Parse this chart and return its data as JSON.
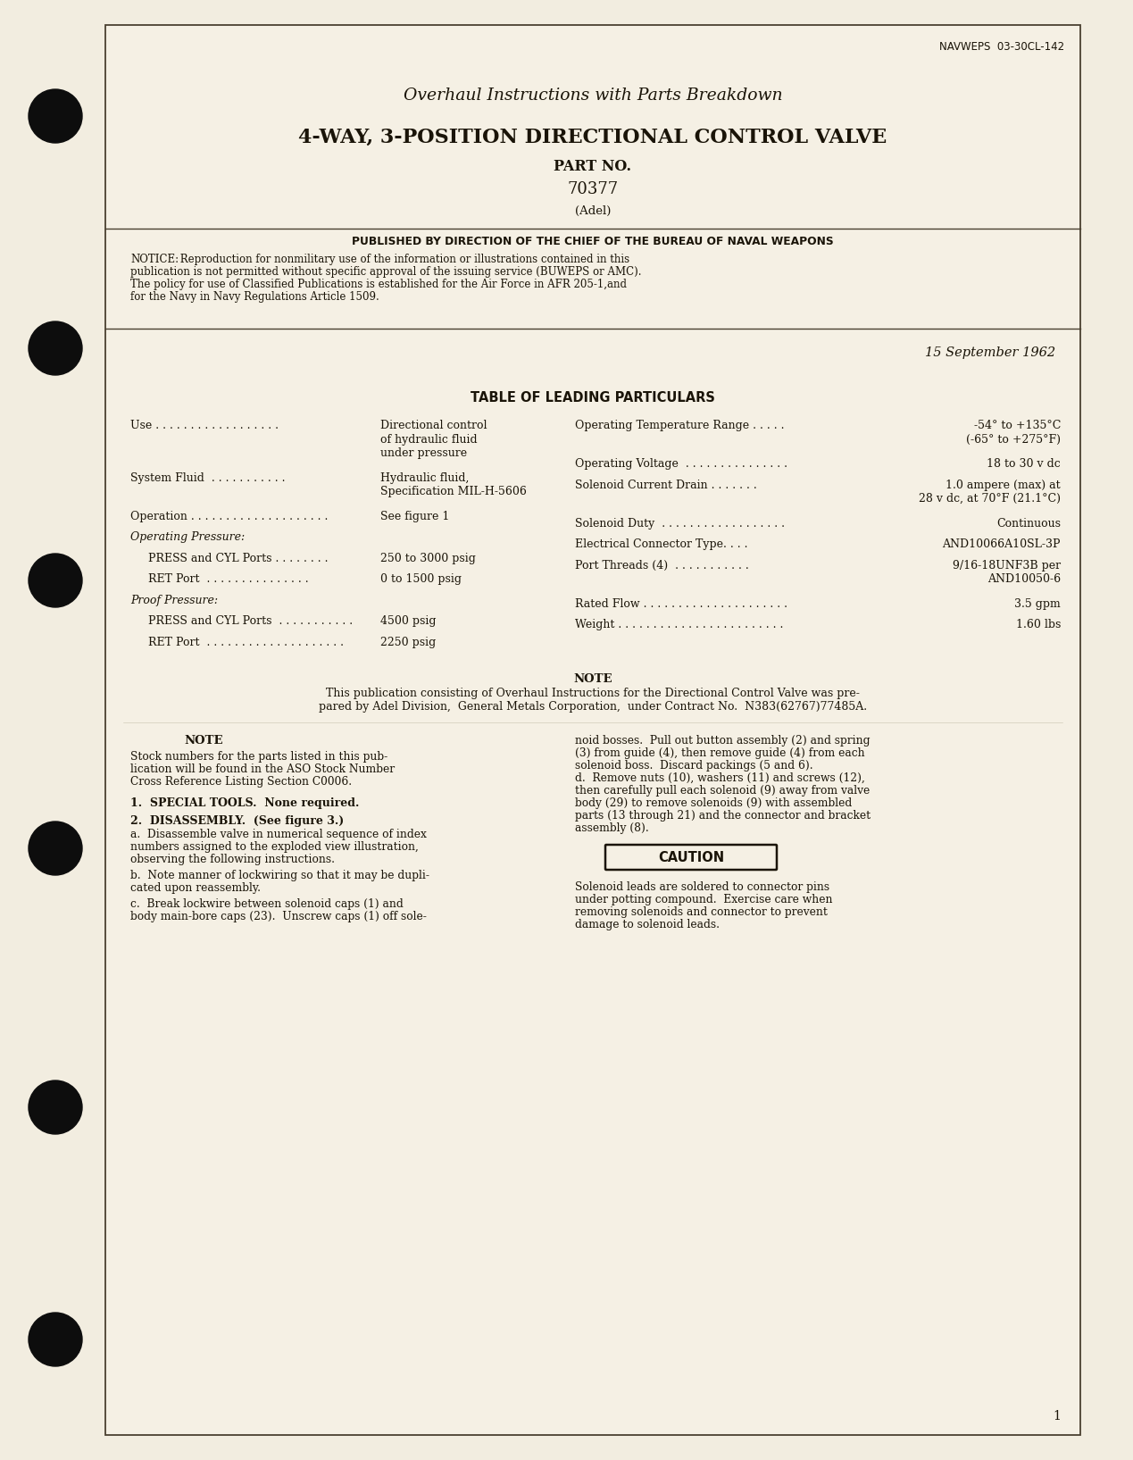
{
  "bg_color": "#f2ede0",
  "inner_bg": "#f5f0e4",
  "text_color": "#1a1408",
  "navweps": "NAVWEPS  03-30CL-142",
  "title1": "Overhaul Instructions with Parts Breakdown",
  "title2": "4-WAY, 3-POSITION DIRECTIONAL CONTROL VALVE",
  "title3": "PART NO.",
  "title4": "70377",
  "title5": "(Adel)",
  "published": "PUBLISHED BY DIRECTION OF THE CHIEF OF THE BUREAU OF NAVAL WEAPONS",
  "notice_label": "NOTICE:",
  "notice_body": "  Reproduction for nonmilitary use of the information or illustrations contained in this\npublication is not permitted without specific approval of the issuing service (BUWEPS or AMC).\nThe policy for use of Classified Publications is established for the Air Force in AFR 205-1,and\nfor the Navy in Navy Regulations Article 1509.",
  "date": "15 September 1962",
  "table_heading": "TABLE OF LEADING PARTICULARS",
  "note_heading": "NOTE",
  "note_text": "This publication consisting of Overhaul Instructions for the Directional Control Valve was pre-\npared by Adel Division,  General Metals Corporation,  under Contract No.  N383(62767)77485A.",
  "note2_heading": "NOTE",
  "note2_text": "Stock numbers for the parts listed in this pub-\nlication will be found in the ASO Stock Number\nCross Reference Listing Section C0006.",
  "section1": "1.  SPECIAL TOOLS.  None required.",
  "section2_head": "2.  DISASSEMBLY.  (See figure 3.)",
  "section2a": "a.  Disassemble valve in numerical sequence of index\nnumbers assigned to the exploded view illustration,\nobserving the following instructions.",
  "section2b": "b.  Note manner of lockwiring so that it may be dupli-\ncated upon reassembly.",
  "section2c": "c.  Break lockwire between solenoid caps (1) and\nbody main-bore caps (23).  Unscrew caps (1) off sole-",
  "right_para": "noid bosses.  Pull out button assembly (2) and spring\n(3) from guide (4), then remove guide (4) from each\nsolenoid boss.  Discard packings (5 and 6).\nd.  Remove nuts (10), washers (11) and screws (12),\nthen carefully pull each solenoid (9) away from valve\nbody (29) to remove solenoids (9) with assembled\nparts (13 through 21) and the connector and bracket\nassembly (8).",
  "caution_label": "CAUTION",
  "caution_body": "Solenoid leads are soldered to connector pins\nunder potting compound.  Exercise care when\nremoving solenoids and connector to prevent\ndamage to solenoid leads.",
  "page_num": "1",
  "left_entries": [
    {
      "label": "Use . . . . . . . . . . . . . . . . . .",
      "value": "Directional control\nof hydraulic fluid\nunder pressure",
      "indent": false,
      "header": false
    },
    {
      "label": "System Fluid  . . . . . . . . . . .",
      "value": "Hydraulic fluid,\nSpecification MIL-H-5606",
      "indent": false,
      "header": false
    },
    {
      "label": "Operation . . . . . . . . . . . . . . . . . . . .",
      "value": "See figure 1",
      "indent": false,
      "header": false
    },
    {
      "label": "Operating Pressure:",
      "value": "",
      "indent": false,
      "header": true
    },
    {
      "label": "PRESS and CYL Ports . . . . . . . .",
      "value": "250 to 3000 psig",
      "indent": true,
      "header": false
    },
    {
      "label": "RET Port  . . . . . . . . . . . . . . .",
      "value": "0 to 1500 psig",
      "indent": true,
      "header": false
    },
    {
      "label": "Proof Pressure:",
      "value": "",
      "indent": false,
      "header": true
    },
    {
      "label": "PRESS and CYL Ports  . . . . . . . . . . .",
      "value": "4500 psig",
      "indent": true,
      "header": false
    },
    {
      "label": "RET Port  . . . . . . . . . . . . . . . . . . . .",
      "value": "2250 psig",
      "indent": true,
      "header": false
    }
  ],
  "right_entries": [
    {
      "label": "Operating Temperature Range . . . . .",
      "value": "-54° to +135°C\n(-65° to +275°F)"
    },
    {
      "label": "Operating Voltage  . . . . . . . . . . . . . . .",
      "value": "18 to 30 v dc"
    },
    {
      "label": "Solenoid Current Drain . . . . . . .",
      "value": "1.0 ampere (max) at\n28 v dc, at 70°F (21.1°C)"
    },
    {
      "label": "Solenoid Duty  . . . . . . . . . . . . . . . . . .",
      "value": "Continuous"
    },
    {
      "label": "Electrical Connector Type. . . .",
      "value": "AND10066A10SL-3P"
    },
    {
      "label": "Port Threads (4)  . . . . . . . . . . .",
      "value": "9/16-18UNF3B per\nAND10050-6"
    },
    {
      "label": "Rated Flow . . . . . . . . . . . . . . . . . . . . .",
      "value": "3.5 gpm"
    },
    {
      "label": "Weight . . . . . . . . . . . . . . . . . . . . . . . .",
      "value": "1.60 lbs"
    }
  ]
}
